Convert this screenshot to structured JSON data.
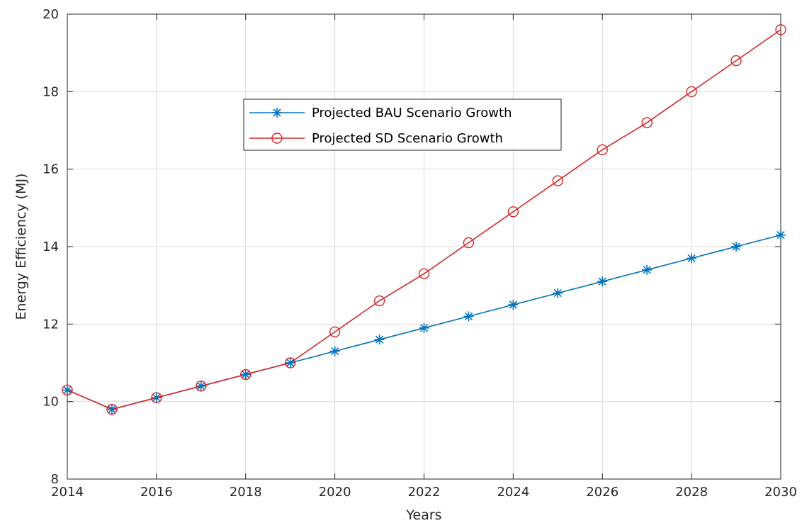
{
  "chart_data": {
    "type": "line",
    "title": "",
    "xlabel": "Years",
    "ylabel": "Energy Efficiency (MJ)",
    "xlim": [
      2014,
      2030
    ],
    "ylim": [
      8,
      20
    ],
    "x_ticks": [
      2014,
      2016,
      2018,
      2020,
      2022,
      2024,
      2026,
      2028,
      2030
    ],
    "y_ticks": [
      8,
      10,
      12,
      14,
      16,
      18,
      20
    ],
    "x_ticks_text": [
      "2014",
      "2016",
      "2018",
      "2020",
      "2022",
      "2024",
      "2026",
      "2028",
      "2030"
    ],
    "y_ticks_text": [
      "8",
      "10",
      "12",
      "14",
      "16",
      "18",
      "20"
    ],
    "x": [
      2014,
      2015,
      2016,
      2017,
      2018,
      2019,
      2020,
      2021,
      2022,
      2023,
      2024,
      2025,
      2026,
      2027,
      2028,
      2029,
      2030
    ],
    "grid": true,
    "legend_position": "top-center",
    "series": [
      {
        "name": "Projected BAU Scenario Growth",
        "color": "#0072BD",
        "marker": "asterisk",
        "values": [
          10.3,
          9.8,
          10.1,
          10.4,
          10.7,
          11.0,
          11.3,
          11.6,
          11.9,
          12.2,
          12.5,
          12.8,
          13.1,
          13.4,
          13.7,
          14.0,
          14.3
        ]
      },
      {
        "name": "Projected SD Scenario Growth",
        "color": "#D62728",
        "marker": "circle",
        "values": [
          10.3,
          9.8,
          10.1,
          10.4,
          10.7,
          11.0,
          11.8,
          12.6,
          13.3,
          14.1,
          14.9,
          15.7,
          16.5,
          17.2,
          18.0,
          18.8,
          19.6
        ]
      }
    ]
  }
}
